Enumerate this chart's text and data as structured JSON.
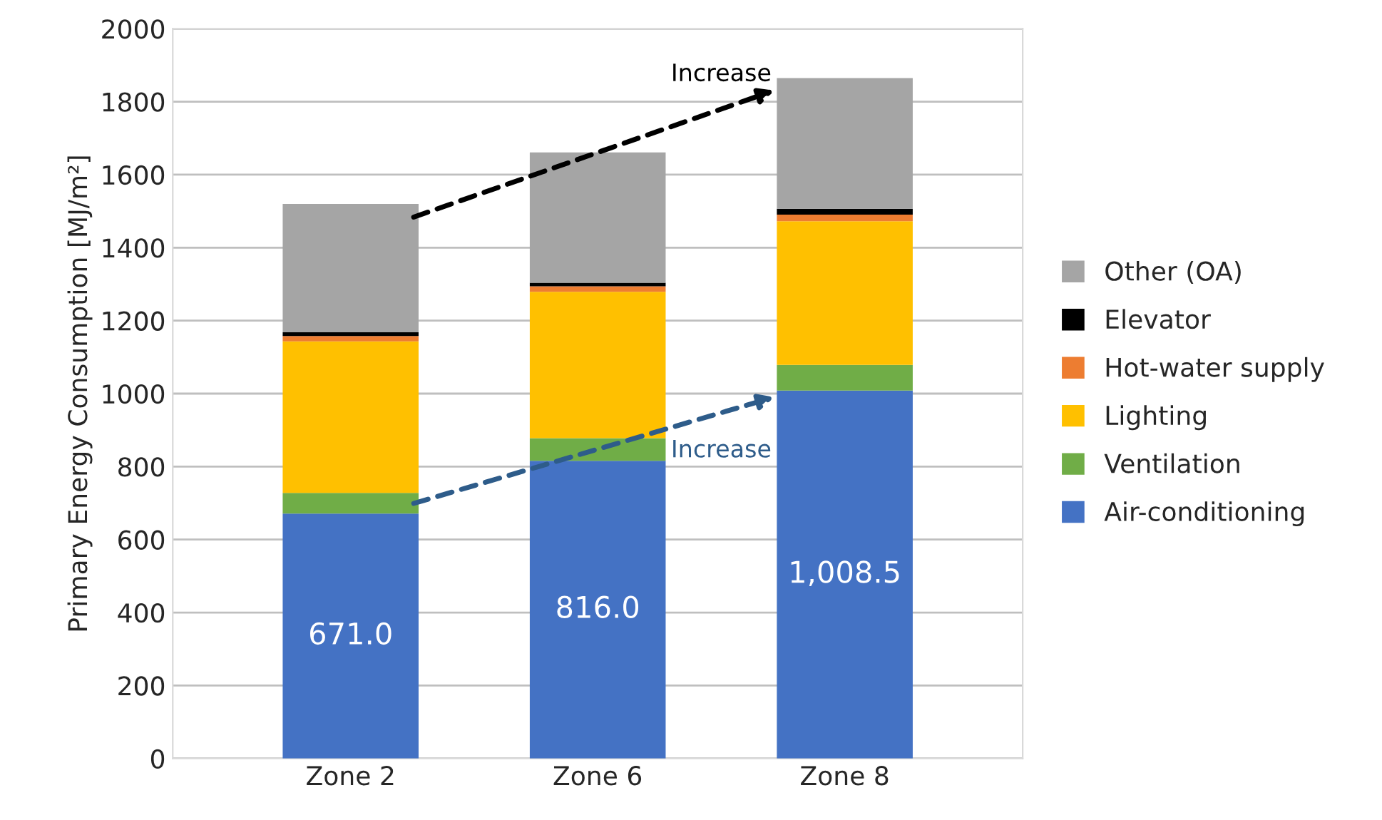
{
  "chart_data": {
    "type": "bar",
    "stacked": true,
    "ylabel": "Primary Energy Consumption [MJ/m²]",
    "categories": [
      "Zone 2",
      "Zone 6",
      "Zone 8"
    ],
    "series": [
      {
        "name": "Air-conditioning",
        "color": "#4472c4",
        "values": [
          671.0,
          816.0,
          1008.5
        ],
        "value_labels": [
          "671.0",
          "816.0",
          "1,008.5"
        ]
      },
      {
        "name": "Ventilation",
        "color": "#70ad47",
        "values": [
          57,
          62,
          70
        ]
      },
      {
        "name": "Lighting",
        "color": "#ffc000",
        "values": [
          415,
          401,
          394
        ]
      },
      {
        "name": "Hot-water supply",
        "color": "#ed7d31",
        "values": [
          15,
          15,
          18
        ]
      },
      {
        "name": "Elevator",
        "color": "#000000",
        "values": [
          10,
          10,
          16
        ]
      },
      {
        "name": "Other (OA)",
        "color": "#a5a5a5",
        "values": [
          352,
          357,
          358
        ]
      }
    ],
    "ylim": [
      0,
      2000
    ],
    "yticks": [
      0,
      200,
      400,
      600,
      800,
      1000,
      1200,
      1400,
      1600,
      1800,
      2000
    ],
    "grid": "y",
    "legend": "right",
    "annotations": [
      "Increase",
      "Increase"
    ]
  }
}
